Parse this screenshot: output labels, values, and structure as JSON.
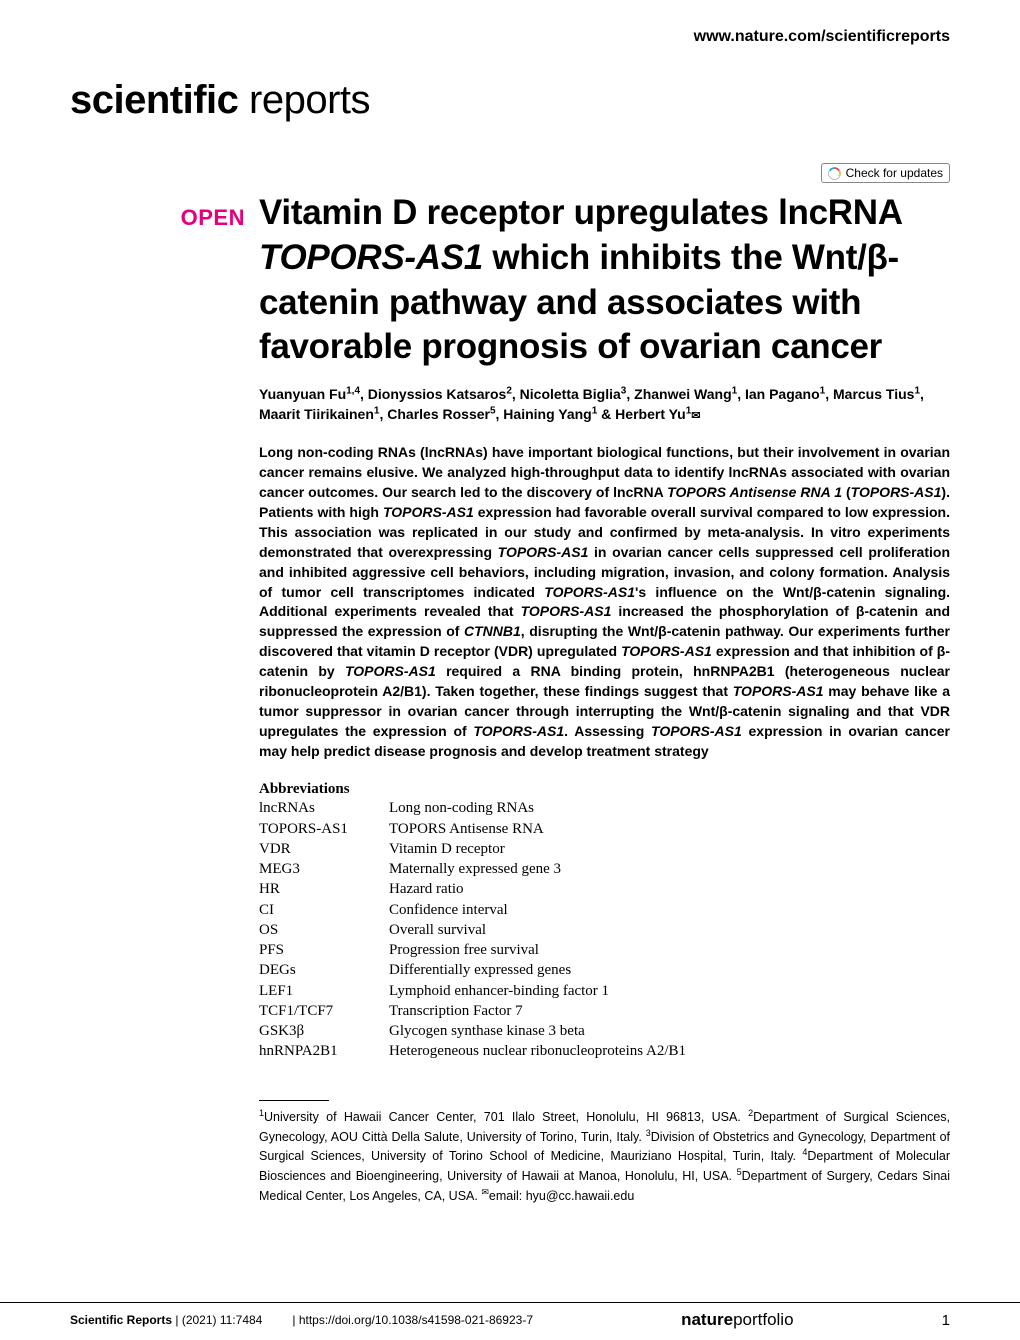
{
  "header": {
    "url": "www.nature.com/scientificreports",
    "journal_bold": "scientific",
    "journal_light": " reports",
    "check_updates": "Check for updates"
  },
  "article": {
    "open_label": "OPEN",
    "title_line1": "Vitamin D receptor upregulates lncRNA ",
    "title_italic1": "TOPORS-AS1",
    "title_line2": " which inhibits the Wnt/β-catenin pathway and associates with favorable prognosis of ovarian cancer",
    "authors_html": "Yuanyuan Fu<sup>1,4</sup>, Dionyssios Katsaros<sup>2</sup>, Nicoletta Biglia<sup>3</sup>, Zhanwei Wang<sup>1</sup>, Ian Pagano<sup>1</sup>, Marcus Tius<sup>1</sup>, Maarit Tiirikainen<sup>1</sup>, Charles Rosser<sup>5</sup>, Haining Yang<sup>1</sup> & Herbert Yu<sup>1</sup><span class=\"envelope\">✉</span>",
    "abstract": "Long non-coding RNAs (lncRNAs) have important biological functions, but their involvement in ovarian cancer remains elusive. We analyzed high-throughput data to identify lncRNAs associated with ovarian cancer outcomes. Our search led to the discovery of lncRNA <span class=\"italic\">TOPORS Antisense RNA 1</span> (<span class=\"italic\">TOPORS-AS1</span>). Patients with high <span class=\"italic\">TOPORS-AS1</span> expression had favorable overall survival compared to low expression. This association was replicated in our study and confirmed by meta-analysis. In vitro experiments demonstrated that overexpressing <span class=\"italic\">TOPORS-AS1</span> in ovarian cancer cells suppressed cell proliferation and inhibited aggressive cell behaviors, including migration, invasion, and colony formation. Analysis of tumor cell transcriptomes indicated <span class=\"italic\">TOPORS-AS1</span>'s influence on the Wnt/β-catenin signaling. Additional experiments revealed that <span class=\"italic\">TOPORS-AS1</span> increased the phosphorylation of β-catenin and suppressed the expression of <span class=\"italic\">CTNNB1</span>, disrupting the Wnt/β-catenin pathway. Our experiments further discovered that vitamin D receptor (VDR) upregulated <span class=\"italic\">TOPORS-AS1</span> expression and that inhibition of β-catenin by <span class=\"italic\">TOPORS-AS1</span> required a RNA binding protein, hnRNPA2B1 (heterogeneous nuclear ribonucleoprotein A2/B1). Taken together, these findings suggest that <span class=\"italic\">TOPORS-AS1</span> may behave like a tumor suppressor in ovarian cancer through interrupting the Wnt/β-catenin signaling and that VDR upregulates the expression of <span class=\"italic\">TOPORS-AS1</span>. Assessing <span class=\"italic\">TOPORS-AS1</span> expression in ovarian cancer may help predict disease prognosis and develop treatment strategy"
  },
  "abbreviations": {
    "heading": "Abbreviations",
    "items": [
      {
        "term": "lncRNAs",
        "def": "Long non-coding RNAs"
      },
      {
        "term": "TOPORS-AS1",
        "def": "TOPORS Antisense RNA"
      },
      {
        "term": "VDR",
        "def": "Vitamin D receptor"
      },
      {
        "term": "MEG3",
        "def": "Maternally expressed gene 3"
      },
      {
        "term": "HR",
        "def": "Hazard ratio"
      },
      {
        "term": "CI",
        "def": "Confidence interval"
      },
      {
        "term": "OS",
        "def": "Overall survival"
      },
      {
        "term": "PFS",
        "def": "Progression free survival"
      },
      {
        "term": "DEGs",
        "def": "Differentially expressed genes"
      },
      {
        "term": "LEF1",
        "def": "Lymphoid enhancer-binding factor 1"
      },
      {
        "term": "TCF1/TCF7",
        "def": "Transcription Factor 7"
      },
      {
        "term": "GSK3β",
        "def": "Glycogen synthase kinase 3 beta"
      },
      {
        "term": "hnRNPA2B1",
        "def": "Heterogeneous nuclear ribonucleoproteins A2/B1"
      }
    ]
  },
  "affiliations": "<sup>1</sup>University of Hawaii Cancer Center, 701 Ilalo Street, Honolulu, HI 96813, USA. <sup>2</sup>Department of Surgical Sciences, Gynecology, AOU Città Della Salute, University of Torino, Turin, Italy. <sup>3</sup>Division of Obstetrics and Gynecology, Department of Surgical Sciences, University of Torino School of Medicine, Mauriziano Hospital, Turin, Italy. <sup>4</sup>Department of Molecular Biosciences and Bioengineering, University of Hawaii at Manoa, Honolulu, HI, USA. <sup>5</sup>Department of Surgery, Cedars Sinai Medical Center, Los Angeles, CA, USA. <sup>✉</sup>email: hyu@cc.hawaii.edu",
  "footer": {
    "journal": "Scientific Reports",
    "citation": "(2021) 11:7484",
    "doi": "https://doi.org/10.1038/s41598-021-86923-7",
    "publisher_bold": "nature",
    "publisher_light": "portfolio",
    "page": "1"
  },
  "colors": {
    "open_pink": "#e6007e",
    "text_black": "#000000",
    "background": "#ffffff",
    "crossmark_red": "#ef3e42",
    "crossmark_yellow": "#ffc20e",
    "crossmark_blue": "#00aeef"
  }
}
